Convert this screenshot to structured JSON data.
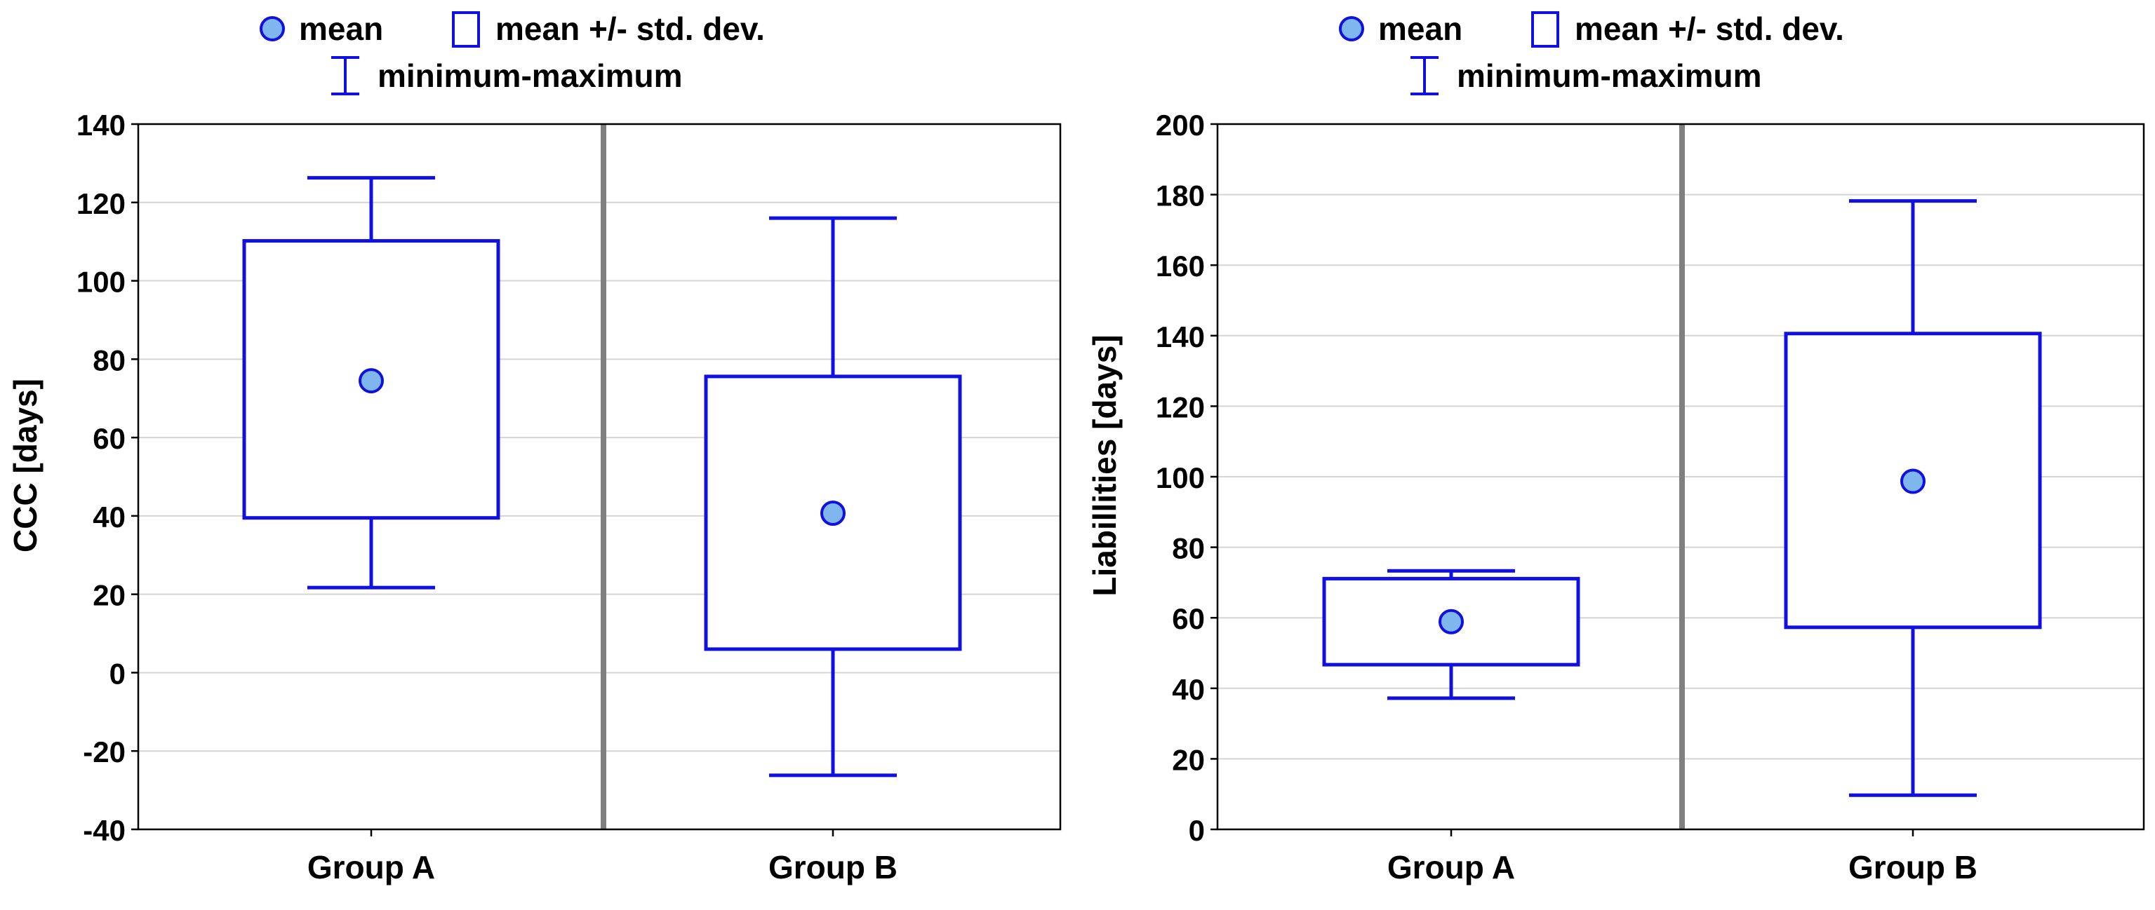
{
  "chart_data": [
    {
      "type": "box",
      "xlabel": "",
      "ylabel": "CCC [days]",
      "ylim": [
        -40,
        140
      ],
      "yticks": [
        -40,
        -20,
        0,
        20,
        40,
        60,
        80,
        100,
        120,
        140
      ],
      "grid": true,
      "legend": {
        "placement": "top-center",
        "mean_label": "mean",
        "std_label": "mean +/- std. dev.",
        "minmax_label": "minimum-maximum"
      },
      "categories": [
        "Group A",
        "Group B"
      ],
      "boxes": [
        {
          "group": "Group A",
          "mean": 74.5,
          "mean_minus_sd": 39.5,
          "mean_plus_sd": 110.2,
          "min": 21.7,
          "max": 126.3
        },
        {
          "group": "Group B",
          "mean": 40.7,
          "mean_minus_sd": 6.0,
          "mean_plus_sd": 75.6,
          "min": -26.2,
          "max": 116.0
        }
      ]
    },
    {
      "type": "box",
      "xlabel": "",
      "ylabel": "Liabillities [days]",
      "ylim": [
        0,
        200
      ],
      "yticks": [
        0,
        20,
        40,
        60,
        80,
        100,
        120,
        140,
        160,
        180,
        200
      ],
      "grid": true,
      "legend": {
        "placement": "top-center",
        "mean_label": "mean",
        "std_label": "mean +/- std. dev.",
        "minmax_label": "minimum-maximum"
      },
      "categories": [
        "Group A",
        "Group B"
      ],
      "boxes": [
        {
          "group": "Group A",
          "mean": 58.9,
          "mean_minus_sd": 46.7,
          "mean_plus_sd": 71.1,
          "min": 37.2,
          "max": 73.3
        },
        {
          "group": "Group B",
          "mean": 98.7,
          "mean_minus_sd": 57.3,
          "mean_plus_sd": 140.6,
          "min": 9.7,
          "max": 178.2
        }
      ]
    }
  ],
  "colors": {
    "box_stroke": "#1010e0",
    "mean_fill": "#7fb6ee",
    "grid": "#d4d4d4",
    "divider": "#808080",
    "text": "#000000"
  }
}
